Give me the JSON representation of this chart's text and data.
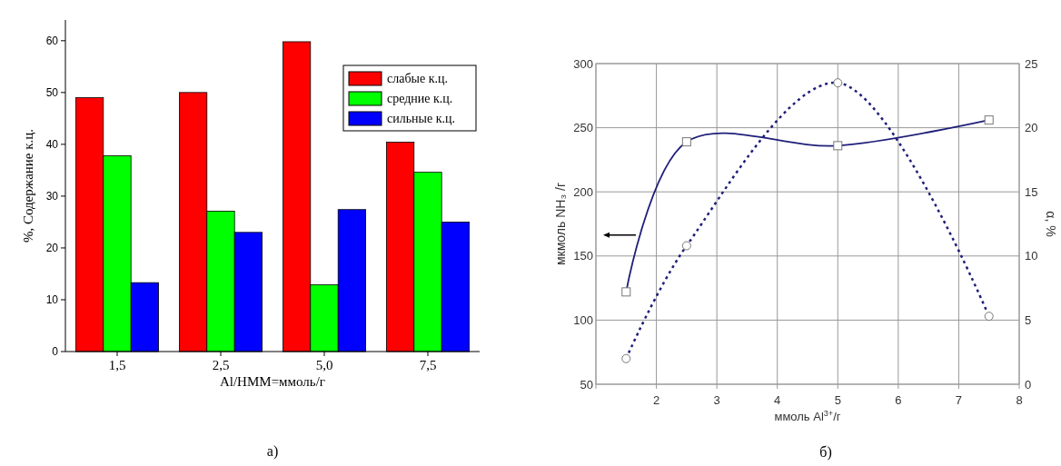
{
  "chart_data": [
    {
      "type": "bar",
      "title": "а)",
      "xlabel": "Al/HMM=ммоль/г",
      "ylabel": "%, Содержание к.ц.",
      "categories": [
        "1,5",
        "2,5",
        "5,0",
        "7,5"
      ],
      "series": [
        {
          "name": "слабые к.ц.",
          "color": "#ff0000",
          "values": [
            49,
            50,
            59.8,
            40.4
          ]
        },
        {
          "name": "средние к.ц.",
          "color": "#00ff00",
          "values": [
            37.8,
            27.1,
            12.9,
            34.6
          ]
        },
        {
          "name": "сильные к.ц.",
          "color": "#0000ff",
          "values": [
            13.3,
            23,
            27.4,
            25
          ]
        }
      ],
      "ylim": [
        0,
        64
      ],
      "yticks": [
        0,
        10,
        20,
        30,
        40,
        50,
        60
      ],
      "grid": false,
      "legend": "top right"
    },
    {
      "type": "line",
      "title": "б)",
      "xlabel": "ммоль Al$^{3+}$/г",
      "ylabel": "мкмоль NH₃ /г",
      "y2label": "α, %",
      "series": [
        {
          "color": "#1f1f7a",
          "x": [
            1.5,
            2.5,
            5,
            7.5
          ],
          "values": [
            122,
            239,
            236,
            256
          ],
          "marker": "square",
          "line_style": "solid"
        },
        {
          "color": "#1f1f7a",
          "x": [
            1.5,
            2.5,
            5,
            7.5
          ],
          "values": [
            2.0,
            10.8,
            23.5,
            5.3
          ],
          "marker": "circle",
          "line_style": "dotted",
          "axis": "y2"
        }
      ],
      "xlim": [
        1,
        8
      ],
      "xticks": [
        {
          "value": 1,
          "label": null
        },
        2,
        3,
        4,
        5,
        6,
        7,
        8
      ],
      "ylim": [
        50,
        300
      ],
      "yticks": [
        50,
        100,
        150,
        200,
        250,
        300
      ],
      "y2lim": [
        0,
        25
      ],
      "y2ticks": [
        0,
        5,
        10,
        15,
        20,
        25
      ],
      "grid": true
    }
  ]
}
